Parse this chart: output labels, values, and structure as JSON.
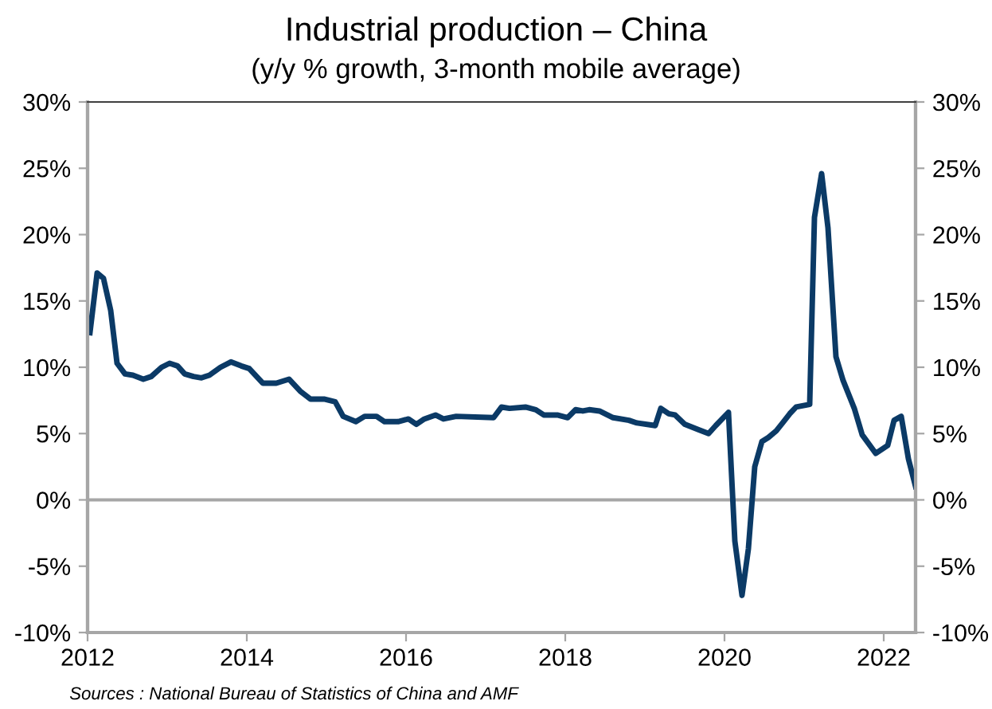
{
  "chart_data": {
    "type": "line",
    "title": "Industrial production – China",
    "subtitle": "(y/y % growth, 3-month mobile average)",
    "annotations": [
      "Sources : National Bureau of Statistics of China and AMF"
    ],
    "series": [
      {
        "color": "#0b3a66",
        "x": [
          2012.03,
          2012.12,
          2012.2,
          2012.29,
          2012.37,
          2012.47,
          2012.57,
          2012.7,
          2012.8,
          2012.93,
          2013.03,
          2013.13,
          2013.22,
          2013.33,
          2013.43,
          2013.53,
          2013.67,
          2013.8,
          2013.93,
          2014.03,
          2014.2,
          2014.37,
          2014.53,
          2014.67,
          2014.8,
          2014.97,
          2015.11,
          2015.21,
          2015.37,
          2015.48,
          2015.63,
          2015.73,
          2015.9,
          2016.03,
          2016.13,
          2016.23,
          2016.37,
          2016.47,
          2016.63,
          2017.1,
          2017.2,
          2017.3,
          2017.5,
          2017.63,
          2017.73,
          2017.9,
          2018.03,
          2018.13,
          2018.22,
          2018.3,
          2018.43,
          2018.6,
          2018.8,
          2018.9,
          2019.13,
          2019.2,
          2019.3,
          2019.38,
          2019.5,
          2019.67,
          2019.8,
          2019.89,
          2020.05,
          2020.13,
          2020.22,
          2020.3,
          2020.38,
          2020.47,
          2020.55,
          2020.65,
          2020.73,
          2020.82,
          2020.9,
          2021.07,
          2021.13,
          2021.22,
          2021.3,
          2021.4,
          2021.49,
          2021.63,
          2021.73,
          2021.9,
          2022.05,
          2022.13,
          2022.22,
          2022.31,
          2022.4
        ],
        "values": [
          12.6,
          17.1,
          16.7,
          14.3,
          10.3,
          9.5,
          9.4,
          9.1,
          9.3,
          10.0,
          10.3,
          10.1,
          9.5,
          9.3,
          9.2,
          9.4,
          10.0,
          10.4,
          10.1,
          9.9,
          8.8,
          8.8,
          9.1,
          8.2,
          7.6,
          7.6,
          7.4,
          6.3,
          5.9,
          6.3,
          6.3,
          5.9,
          5.9,
          6.1,
          5.7,
          6.1,
          6.4,
          6.1,
          6.3,
          6.2,
          7.0,
          6.9,
          7.0,
          6.8,
          6.4,
          6.4,
          6.2,
          6.8,
          6.7,
          6.8,
          6.7,
          6.2,
          6.0,
          5.8,
          5.6,
          6.9,
          6.5,
          6.4,
          5.7,
          5.3,
          5.0,
          5.6,
          6.6,
          -3.1,
          -7.2,
          -3.7,
          2.5,
          4.4,
          4.7,
          5.2,
          5.8,
          6.5,
          7.0,
          7.2,
          21.3,
          24.6,
          20.5,
          10.8,
          9.0,
          6.9,
          4.9,
          3.5,
          4.1,
          6.0,
          6.3,
          3.1,
          1.0
        ]
      }
    ],
    "xlim": [
      2012,
      2022.4
    ],
    "xticks": [
      2012,
      2014,
      2016,
      2018,
      2020,
      2022
    ],
    "ylim": [
      -10,
      30
    ],
    "yticks": [
      {
        "value": -10,
        "label": "-10%"
      },
      {
        "value": -5,
        "label": "-5%"
      },
      {
        "value": 0,
        "label": "0%"
      },
      {
        "value": 5,
        "label": "5%"
      },
      {
        "value": 10,
        "label": "10%"
      },
      {
        "value": 15,
        "label": "15%"
      },
      {
        "value": 20,
        "label": "20%"
      },
      {
        "value": 25,
        "label": "25%"
      },
      {
        "value": 30,
        "label": "30%"
      }
    ],
    "y2lim": [
      -10,
      30
    ],
    "y2ticks": [
      {
        "value": -10,
        "label": "-10%"
      },
      {
        "value": -5,
        "label": "-5%"
      },
      {
        "value": 0,
        "label": "0%"
      },
      {
        "value": 5,
        "label": "5%"
      },
      {
        "value": 10,
        "label": "10%"
      },
      {
        "value": 15,
        "label": "15%"
      },
      {
        "value": 20,
        "label": "20%"
      },
      {
        "value": 25,
        "label": "25%"
      },
      {
        "value": 30,
        "label": "30%"
      }
    ],
    "ref_lines": [
      {
        "axis": "y",
        "value": 0,
        "color": "#a6a6a6"
      }
    ],
    "grid": false,
    "legend": false,
    "marker": "none",
    "line_style": "solid"
  }
}
